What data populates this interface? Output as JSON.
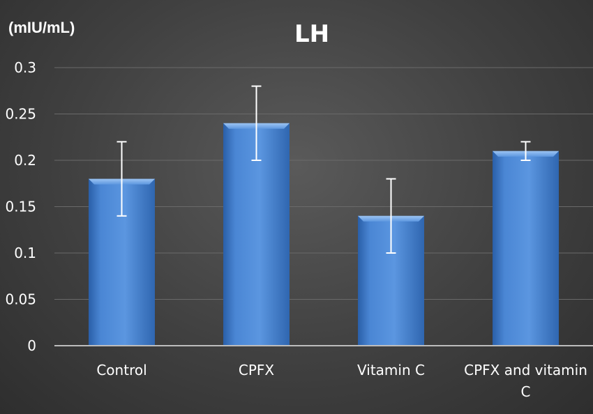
{
  "chart_data": {
    "type": "bar",
    "title": "LH",
    "xlabel": "",
    "ylabel": "(mIU/mL)",
    "categories": [
      "Control",
      "CPFX",
      "Vitamin C",
      "CPFX and vitamin C"
    ],
    "category_lines": [
      [
        "Control"
      ],
      [
        "CPFX"
      ],
      [
        "Vitamin C"
      ],
      [
        "CPFX and vitamin",
        "C"
      ]
    ],
    "values": [
      0.18,
      0.24,
      0.14,
      0.21
    ],
    "error": [
      0.04,
      0.04,
      0.04,
      0.01
    ],
    "ylim": [
      0,
      0.3
    ],
    "yticks": [
      "0",
      "0.05",
      "0.1",
      "0.15",
      "0.2",
      "0.25",
      "0.3"
    ],
    "grid": true,
    "legend": "none",
    "colors": {
      "bar": "#4a86d4",
      "bar_dark": "#2a5fa8",
      "bar_light": "#7fb0ec",
      "grid": "#6a6a6a",
      "axis": "#bdbdbd",
      "error_bar": "#ffffff"
    }
  }
}
